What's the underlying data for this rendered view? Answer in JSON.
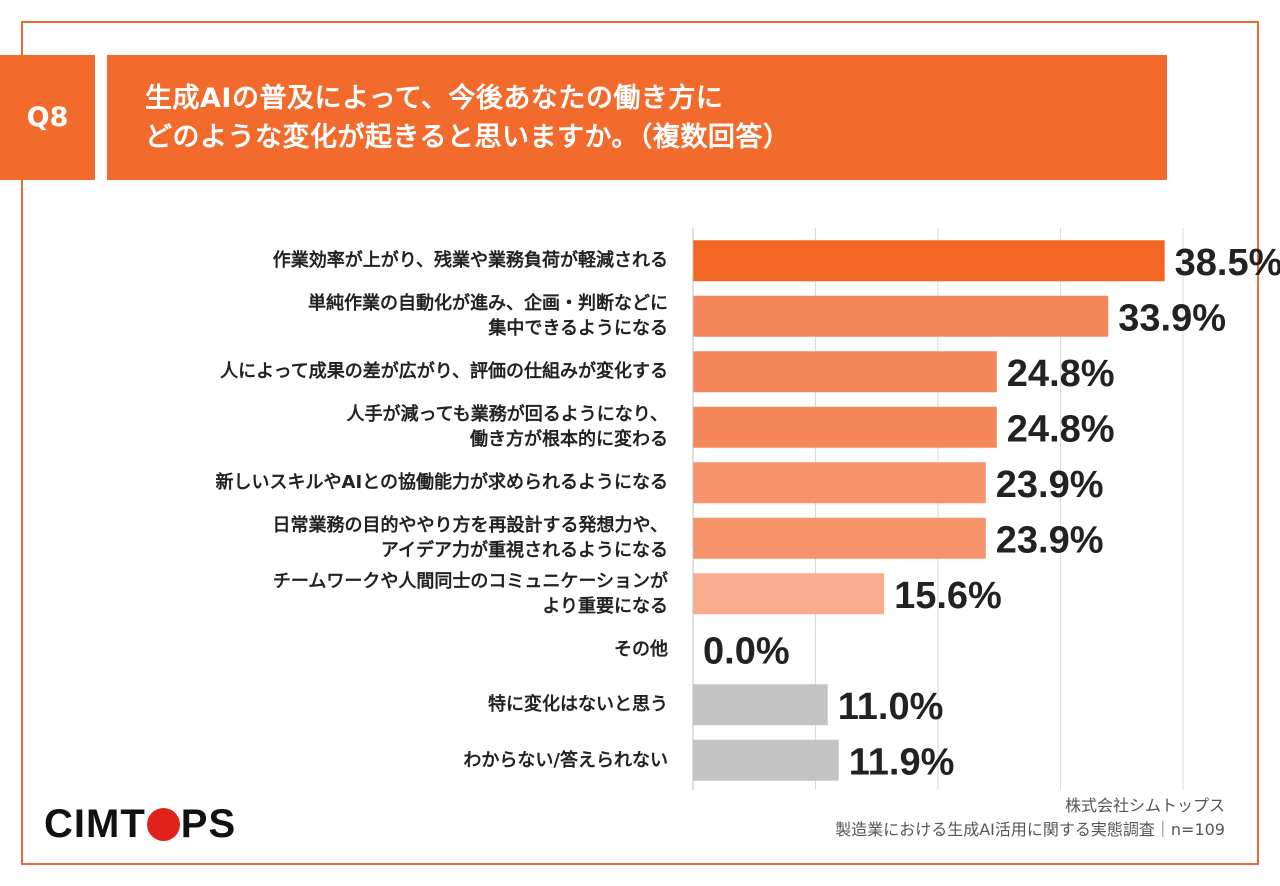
{
  "question": {
    "badge": "Q8",
    "title": "生成AIの普及によって、今後あなたの働き方に\nどのような変化が起きると思いますか。（複数回答）"
  },
  "chart_data": {
    "type": "bar",
    "orientation": "horizontal",
    "xlim": [
      0,
      40
    ],
    "grid": true,
    "categories": [
      [
        "作業効率が上がり、残業や業務負荷が軽減される"
      ],
      [
        "単純作業の自動化が進み、企画・判断などに",
        "集中できるようになる"
      ],
      [
        "人によって成果の差が広がり、評価の仕組みが変化する"
      ],
      [
        "人手が減っても業務が回るようになり、",
        "働き方が根本的に変わる"
      ],
      [
        "新しいスキルやAIとの協働能力が求められるようになる"
      ],
      [
        "日常業務の目的ややり方を再設計する発想力や、",
        "アイデア力が重視されるようになる"
      ],
      [
        "チームワークや人間同士のコミュニケーションが",
        "より重要になる"
      ],
      [
        "その他"
      ],
      [
        "特に変化はないと思う"
      ],
      [
        "わからない/答えられない"
      ]
    ],
    "values": [
      38.5,
      33.9,
      24.8,
      24.8,
      23.9,
      23.9,
      15.6,
      0.0,
      11.0,
      11.9
    ],
    "value_labels": [
      "38.5%",
      "33.9%",
      "24.8%",
      "24.8%",
      "23.9%",
      "23.9%",
      "15.6%",
      "0.0%",
      "11.0%",
      "11.9%"
    ],
    "bar_colors": [
      "#f26522",
      "#f5875a",
      "#f5875a",
      "#f5875a",
      "#f7936a",
      "#f7936a",
      "#f9ad8e",
      "#f9ad8e",
      "#c4c4c4",
      "#c4c4c4"
    ]
  },
  "colors": {
    "accent": "#f26a2c",
    "frame": "#ec6a3a",
    "grid": "#d9d9d9",
    "logo_dot": "#e0221c"
  },
  "logo": {
    "left": "CIMT",
    "right": "PS"
  },
  "footer": {
    "company": "株式会社シムトップス",
    "survey": "製造業における生成AI活用に関する実態調査｜n=109"
  }
}
